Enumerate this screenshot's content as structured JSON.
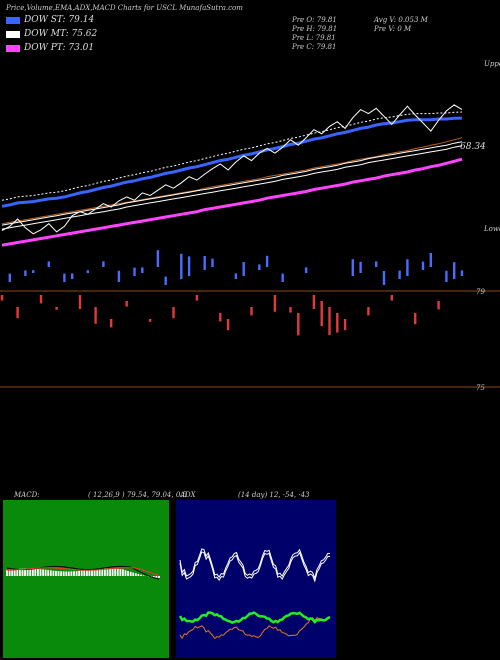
{
  "header": {
    "title": "Price,Volume,EMA,ADX,MACD Charts for USCL MunafaSutra.com"
  },
  "legend": [
    {
      "label": "DOW ST: 79.14",
      "color": "#3a64ff"
    },
    {
      "label": "DOW MT: 75.62",
      "color": "#ffffff"
    },
    {
      "label": "DOW PT: 73.01",
      "color": "#ff44ff"
    }
  ],
  "info": {
    "col1": [
      "Pre O: 79.81",
      "Pre H: 79.81",
      "Pre L: 79.81",
      "Pre C: 79.81"
    ],
    "col2": [
      "Avg V: 0.053 M",
      "Pre V: 0 M"
    ]
  },
  "price_panel": {
    "upper_label": "Upper",
    "lower_label": "Lower",
    "last_value": "68.34",
    "level_labels": [
      "79",
      "75"
    ]
  },
  "macd": {
    "label": "MACD:",
    "values": "( 12,26,9 ) 79.54, 79.04, 0.5"
  },
  "adx": {
    "label": "ADX",
    "values": "(14 day) 12, ·54, ·43"
  },
  "chart_data": {
    "type": "line",
    "title": "Price,Volume,EMA,ADX,MACD Charts for USCL",
    "series": [
      {
        "name": "DOW ST",
        "color": "#3a64ff"
      },
      {
        "name": "DOW MT",
        "color": "#ffffff"
      },
      {
        "name": "DOW PT",
        "color": "#ff44ff"
      }
    ],
    "price": [
      62.4,
      63.0,
      64.1,
      62.8,
      61.9,
      62.5,
      63.4,
      62.2,
      63.0,
      64.6,
      65.2,
      64.8,
      65.6,
      66.4,
      65.9,
      66.8,
      67.4,
      66.9,
      68.0,
      67.6,
      68.4,
      69.2,
      68.7,
      69.5,
      70.4,
      69.9,
      70.8,
      71.6,
      72.3,
      71.4,
      72.6,
      73.5,
      72.8,
      73.9,
      74.6,
      73.9,
      74.8,
      75.9,
      75.1,
      76.2,
      77.4,
      76.8,
      77.9,
      78.6,
      77.6,
      79.2,
      80.4,
      79.8,
      80.6,
      79.4,
      78.2,
      79.6,
      80.9,
      79.6,
      78.4,
      77.2,
      78.8,
      80.2,
      81.1,
      80.4
    ],
    "ema_st": [
      66.0,
      66.2,
      66.5,
      66.6,
      66.7,
      66.9,
      67.1,
      67.2,
      67.4,
      67.7,
      68.0,
      68.2,
      68.5,
      68.8,
      69.0,
      69.3,
      69.6,
      69.8,
      70.1,
      70.3,
      70.6,
      70.9,
      71.1,
      71.4,
      71.7,
      71.9,
      72.2,
      72.5,
      72.8,
      73.0,
      73.3,
      73.6,
      73.8,
      74.1,
      74.4,
      74.6,
      74.9,
      75.2,
      75.4,
      75.7,
      76.0,
      76.2,
      76.5,
      76.8,
      77.0,
      77.3,
      77.6,
      77.8,
      78.1,
      78.3,
      78.4,
      78.6,
      78.8,
      78.9,
      78.9,
      78.9,
      79.0,
      79.0,
      79.1,
      79.14
    ],
    "ema_mt": [
      63.2,
      63.4,
      63.6,
      63.8,
      64.0,
      64.2,
      64.4,
      64.6,
      64.8,
      65.0,
      65.2,
      65.4,
      65.6,
      65.8,
      66.0,
      66.2,
      66.5,
      66.7,
      66.9,
      67.1,
      67.3,
      67.5,
      67.7,
      67.9,
      68.1,
      68.3,
      68.5,
      68.7,
      68.9,
      69.1,
      69.3,
      69.5,
      69.7,
      69.9,
      70.1,
      70.3,
      70.6,
      70.8,
      71.0,
      71.2,
      71.5,
      71.7,
      71.9,
      72.1,
      72.4,
      72.6,
      72.8,
      73.1,
      73.3,
      73.5,
      73.7,
      73.9,
      74.1,
      74.3,
      74.5,
      74.7,
      74.9,
      75.1,
      75.4,
      75.62
    ],
    "ema_pt": [
      60.2,
      60.4,
      60.6,
      60.8,
      61.0,
      61.2,
      61.4,
      61.6,
      61.8,
      62.0,
      62.2,
      62.4,
      62.6,
      62.8,
      63.0,
      63.2,
      63.4,
      63.6,
      63.8,
      64.0,
      64.2,
      64.4,
      64.6,
      64.8,
      65.0,
      65.2,
      65.5,
      65.7,
      65.9,
      66.1,
      66.3,
      66.5,
      66.7,
      66.9,
      67.2,
      67.4,
      67.6,
      67.8,
      68.0,
      68.2,
      68.5,
      68.7,
      68.9,
      69.1,
      69.3,
      69.6,
      69.8,
      70.0,
      70.2,
      70.5,
      70.7,
      70.9,
      71.1,
      71.4,
      71.6,
      71.9,
      72.1,
      72.4,
      72.7,
      73.01
    ],
    "volume_signed": [
      -0.2,
      0.3,
      -0.4,
      0.2,
      0.1,
      -0.3,
      0.2,
      -0.1,
      0.3,
      0.2,
      -0.5,
      0.1,
      -0.6,
      0.2,
      -0.3,
      0.4,
      -0.2,
      0.3,
      0.2,
      -0.1,
      0.6,
      0.3,
      -0.4,
      0.9,
      0.7,
      -0.2,
      0.5,
      0.3,
      -0.3,
      -0.4,
      0.2,
      0.5,
      -0.3,
      0.2,
      0.4,
      -0.6,
      0.3,
      -0.2,
      -0.8,
      0.2,
      -0.5,
      -0.9,
      -1.0,
      -0.7,
      -0.4,
      0.6,
      0.4,
      -0.3,
      0.2,
      0.5,
      -0.2,
      0.3,
      0.6,
      -0.4,
      0.3,
      0.5,
      -0.3,
      0.4,
      0.6,
      0.2
    ],
    "ylim": [
      58,
      86
    ]
  }
}
